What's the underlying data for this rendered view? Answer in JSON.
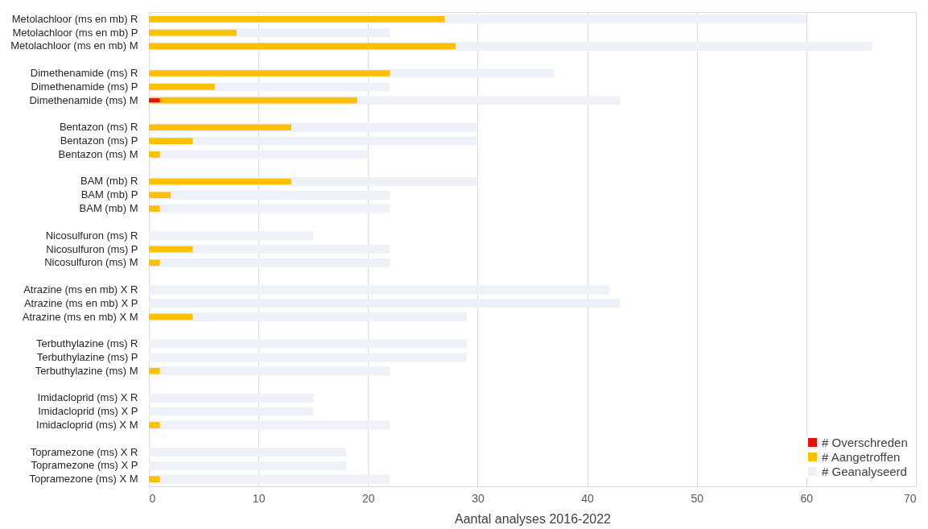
{
  "chart_data": {
    "type": "bar",
    "orientation": "horizontal",
    "xlabel": "Aantal analyses 2016-2022",
    "categories": [
      "Metolachloor (ms en mb)   R",
      "Metolachloor (ms en mb)   P",
      "Metolachloor (ms en mb)   M",
      null,
      "Dimethenamide (ms)   R",
      "Dimethenamide (ms)   P",
      "Dimethenamide (ms)   M",
      null,
      "Bentazon (ms)   R",
      "Bentazon (ms)   P",
      "Bentazon (ms)   M",
      null,
      "BAM (mb)   R",
      "BAM (mb)   P",
      "BAM (mb)   M",
      null,
      "Nicosulfuron (ms)   R",
      "Nicosulfuron (ms)   P",
      "Nicosulfuron (ms)   M",
      null,
      "Atrazine (ms en mb) X R",
      "Atrazine (ms en mb) X P",
      "Atrazine (ms en mb)  X M",
      null,
      "Terbuthylazine (ms)     R",
      "Terbuthylazine (ms)     P",
      "Terbuthylazine (ms)    M",
      null,
      "Imidacloprid (ms) X  R",
      "Imidacloprid (ms) X  P",
      "Imidacloprid (ms) X M",
      null,
      "Topramezone (ms)  X  R",
      "Topramezone (ms)  X  P",
      "Topramezone (ms) X M"
    ],
    "series": [
      {
        "name": "# Overschreden",
        "color": "#e3120b",
        "values": [
          0,
          0,
          0,
          null,
          0,
          0,
          1,
          null,
          0,
          0,
          0,
          null,
          0,
          0,
          0,
          null,
          0,
          0,
          0,
          null,
          0,
          0,
          0,
          null,
          0,
          0,
          0,
          null,
          0,
          0,
          0,
          null,
          0,
          0,
          0
        ]
      },
      {
        "name": "# Aangetroffen",
        "color": "#ffc000",
        "values": [
          27,
          8,
          28,
          null,
          22,
          6,
          19,
          null,
          13,
          4,
          1,
          null,
          13,
          2,
          1,
          null,
          0,
          4,
          1,
          null,
          0,
          0,
          4,
          null,
          0,
          0,
          1,
          null,
          0,
          0,
          1,
          null,
          0,
          0,
          1
        ]
      },
      {
        "name": "# Geanalyseerd",
        "color": "#eef1f7",
        "values": [
          60,
          22,
          66,
          null,
          37,
          22,
          43,
          null,
          30,
          30,
          20,
          null,
          30,
          22,
          22,
          null,
          15,
          22,
          22,
          null,
          42,
          43,
          29,
          null,
          29,
          29,
          22,
          null,
          15,
          15,
          22,
          null,
          18,
          18,
          22
        ]
      }
    ],
    "xlim": [
      0,
      70
    ],
    "xticks": [
      0,
      10,
      20,
      30,
      40,
      50,
      60,
      70
    ],
    "grid": "x",
    "legend": "bottom right"
  }
}
